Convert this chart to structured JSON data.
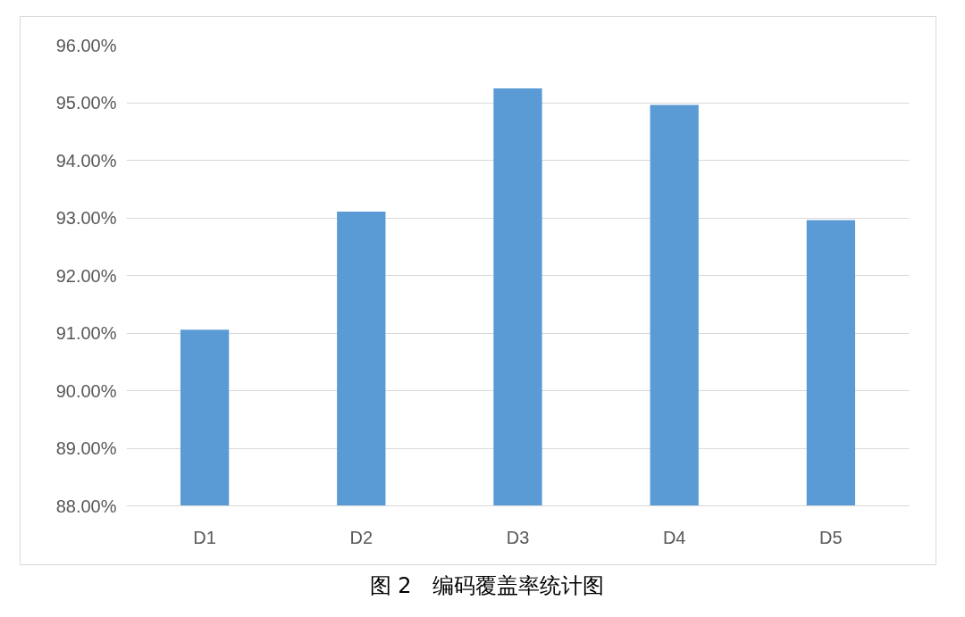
{
  "chart_data": {
    "type": "bar",
    "categories": [
      "D1",
      "D2",
      "D3",
      "D4",
      "D5"
    ],
    "values": [
      91.06,
      93.11,
      95.25,
      94.96,
      92.96
    ],
    "color": "#5b9bd5",
    "ylim": [
      88,
      96
    ],
    "yticks": [
      {
        "value": 88,
        "label": "88.00%"
      },
      {
        "value": 89,
        "label": "89.00%"
      },
      {
        "value": 90,
        "label": "90.00%"
      },
      {
        "value": 91,
        "label": "91.00%"
      },
      {
        "value": 92,
        "label": "92.00%"
      },
      {
        "value": 93,
        "label": "93.00%"
      },
      {
        "value": 94,
        "label": "94.00%"
      },
      {
        "value": 95,
        "label": "95.00%"
      },
      {
        "value": 96,
        "label": "96.00%"
      }
    ],
    "grid": "y",
    "annotations": [
      "图 2　编码覆盖率统计图"
    ]
  }
}
